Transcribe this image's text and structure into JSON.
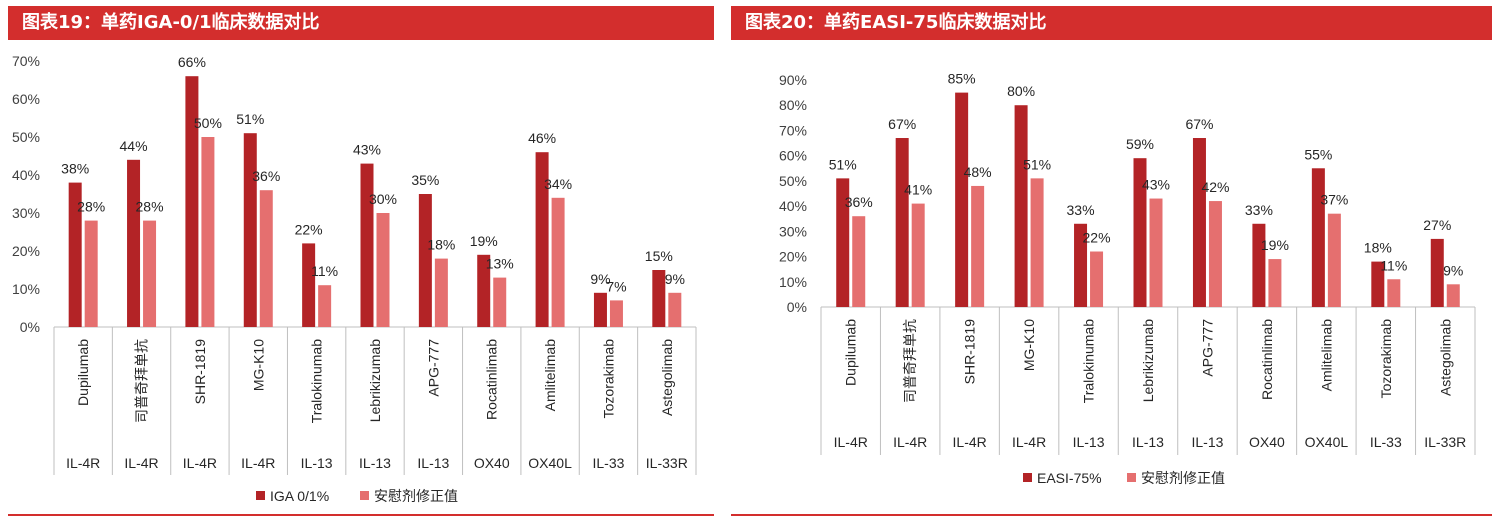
{
  "chart_data": [
    {
      "type": "bar",
      "title": "图表19：单药IGA-0/1临床数据对比",
      "categories": [
        "Dupilumab",
        "司普奇拜单抗",
        "SHR-1819",
        "MG-K10",
        "Tralokinumab",
        "Lebrikizumab",
        "APG-777",
        "Rocatinlimab",
        "Amlitelimab",
        "Tozorakimab",
        "Astegolimab"
      ],
      "targets": [
        "IL-4R",
        "IL-4R",
        "IL-4R",
        "IL-4R",
        "IL-13",
        "IL-13",
        "IL-13",
        "OX40",
        "OX40L",
        "IL-33",
        "IL-33R"
      ],
      "series": [
        {
          "name": "IGA 0/1%",
          "color": "#b32326",
          "values": [
            38,
            44,
            66,
            51,
            22,
            43,
            35,
            19,
            46,
            9,
            15
          ],
          "labels": [
            "38%",
            "44%",
            "66%",
            "51%",
            "22%",
            "43%",
            "35%",
            "19%",
            "46%",
            "9%",
            "15%"
          ]
        },
        {
          "name": "安慰剂修正值",
          "color": "#e56f6f",
          "values": [
            28,
            28,
            50,
            36,
            11,
            30,
            18,
            13,
            34,
            7,
            9
          ],
          "labels": [
            "28%",
            "28%",
            "50%",
            "36%",
            "11%",
            "30%",
            "18%",
            "13%",
            "34%",
            "7%",
            "9%"
          ]
        }
      ],
      "ylim": [
        0,
        70
      ],
      "yticks": [
        0,
        10,
        20,
        30,
        40,
        50,
        60,
        70
      ],
      "ytick_labels": [
        "0%",
        "10%",
        "20%",
        "30%",
        "40%",
        "50%",
        "60%",
        "70%"
      ],
      "legend_position": "bottom-center",
      "xlabel": "",
      "ylabel": ""
    },
    {
      "type": "bar",
      "title": "图表20：单药EASI-75临床数据对比",
      "categories": [
        "Dupilumab",
        "司普奇拜单抗",
        "SHR-1819",
        "MG-K10",
        "Tralokinumab",
        "Lebrikizumab",
        "APG-777",
        "Rocatinlimab",
        "Amlitelimab",
        "Tozorakimab",
        "Astegolimab"
      ],
      "targets": [
        "IL-4R",
        "IL-4R",
        "IL-4R",
        "IL-4R",
        "IL-13",
        "IL-13",
        "IL-13",
        "OX40",
        "OX40L",
        "IL-33",
        "IL-33R"
      ],
      "series": [
        {
          "name": "EASI-75%",
          "color": "#b32326",
          "values": [
            51,
            67,
            85,
            80,
            33,
            59,
            67,
            33,
            55,
            18,
            27
          ],
          "labels": [
            "51%",
            "67%",
            "85%",
            "80%",
            "33%",
            "59%",
            "67%",
            "33%",
            "55%",
            "18%",
            "27%"
          ]
        },
        {
          "name": "安慰剂修正值",
          "color": "#e56f6f",
          "values": [
            36,
            41,
            48,
            51,
            22,
            43,
            42,
            19,
            37,
            11,
            9
          ],
          "labels": [
            "36%",
            "41%",
            "48%",
            "51%",
            "22%",
            "43%",
            "42%",
            "19%",
            "37%",
            "11%",
            "9%"
          ]
        }
      ],
      "ylim": [
        0,
        90
      ],
      "yticks": [
        0,
        10,
        20,
        30,
        40,
        50,
        60,
        70,
        80,
        90
      ],
      "ytick_labels": [
        "0%",
        "10%",
        "20%",
        "30%",
        "40%",
        "50%",
        "60%",
        "70%",
        "80%",
        "90%"
      ],
      "legend_position": "bottom-center",
      "xlabel": "",
      "ylabel": ""
    }
  ]
}
